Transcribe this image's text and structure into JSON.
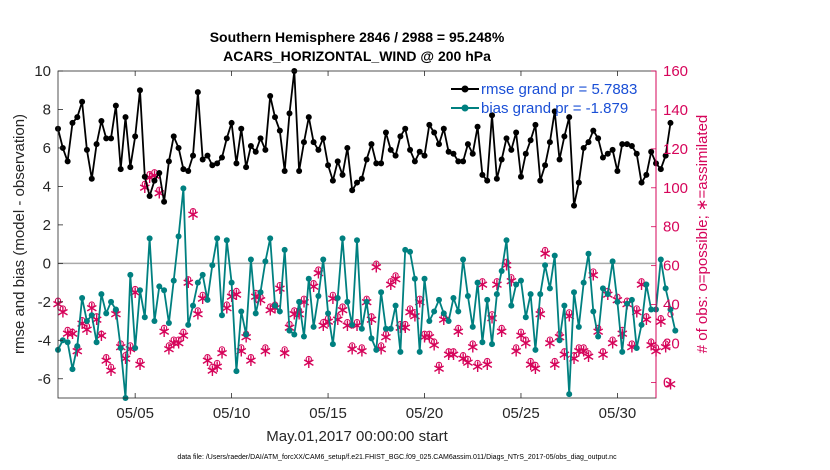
{
  "chart_data": {
    "type": "line",
    "title": "Southern Hemisphere 2846 / 2988 = 95.248%",
    "subtitle": "ACARS_HORIZONTAL_WIND @ 200 hPa",
    "xlabel": "May.01,2017 00:00:00 start",
    "ylabel": "rmse and bias (model - observation)",
    "y2label": "# of obs: o=possible; ∗=assimilated",
    "footnote": "data file: /Users/raeder/DAI/ATM_forcXX/CAM6_setup/f.e21.FHIST_BGC.f09_025.CAM6assim.011/Diags_NTrS_2017-05/obs_diag_output.nc",
    "xlim": [
      1,
      32
    ],
    "ylim": [
      -7,
      10
    ],
    "y2lim": [
      -8,
      160
    ],
    "xticks": [
      5,
      10,
      15,
      20,
      25,
      30
    ],
    "xtick_labels": [
      "05/05",
      "05/10",
      "05/15",
      "05/20",
      "05/25",
      "05/30"
    ],
    "yticks": [
      -6,
      -4,
      -2,
      0,
      2,
      4,
      6,
      8,
      10
    ],
    "y2ticks": [
      0,
      20,
      40,
      60,
      80,
      100,
      120,
      140,
      160
    ],
    "legend": {
      "position": "top-right",
      "entries": [
        "rmse grand pr = 5.7883",
        "bias grand pr = -1.879"
      ]
    },
    "colors": {
      "rmse": "#000000",
      "bias": "#008080",
      "obs": "#d6045a",
      "zero_line": "#aaaaaa"
    },
    "x_start": 1.0,
    "x_step": 0.25,
    "series": [
      {
        "name": "rmse",
        "axis": "left",
        "color": "#000000",
        "values": [
          7.0,
          6.0,
          5.3,
          7.3,
          7.6,
          8.4,
          5.9,
          4.4,
          6.2,
          7.4,
          6.5,
          6.5,
          8.2,
          4.9,
          7.6,
          5.0,
          6.6,
          9.0,
          4.5,
          3.5,
          4.3,
          4.7,
          3.2,
          5.3,
          6.6,
          6.0,
          4.9,
          4.8,
          5.6,
          8.9,
          5.4,
          5.6,
          5.1,
          5.2,
          5.5,
          6.5,
          7.3,
          5.2,
          7.0,
          5.0,
          6.1,
          5.8,
          6.5,
          5.9,
          8.7,
          7.6,
          6.9,
          4.8,
          7.8,
          10.0,
          4.8,
          6.3,
          7.6,
          6.3,
          5.9,
          6.5,
          5.1,
          4.3,
          5.3,
          4.6,
          6.0,
          3.8,
          4.2,
          4.4,
          5.4,
          6.2,
          5.2,
          5.2,
          6.8,
          5.9,
          5.6,
          6.6,
          7.0,
          5.9,
          5.3,
          5.8,
          5.6,
          7.2,
          6.8,
          6.2,
          7.0,
          5.8,
          5.7,
          5.3,
          5.3,
          6.2,
          5.7,
          7.1,
          4.6,
          4.3,
          7.7,
          4.4,
          5.4,
          6.5,
          5.9,
          6.8,
          4.5,
          5.7,
          6.4,
          7.2,
          4.3,
          5.1,
          6.3,
          7.9,
          5.4,
          6.6,
          7.6,
          3.0,
          4.2,
          6.0,
          6.3,
          6.9,
          6.5,
          5.5,
          5.7,
          5.9,
          4.8,
          6.2,
          6.2,
          6.1,
          5.7,
          4.2,
          4.6,
          5.8,
          5.2,
          4.9,
          5.6,
          7.3
        ]
      },
      {
        "name": "bias",
        "axis": "left",
        "color": "#008080",
        "values": [
          -4.5,
          -4.0,
          -4.1,
          -5.5,
          -4.3,
          -1.8,
          -3.0,
          -2.7,
          -4.1,
          -1.6,
          -2.6,
          -2.0,
          -2.4,
          -4.4,
          -7.0,
          -0.6,
          -4.4,
          -1.4,
          -2.8,
          1.3,
          -3.0,
          -1.2,
          -1.4,
          -3.1,
          -0.9,
          1.4,
          3.9,
          -3.2,
          -2.2,
          -1.0,
          -0.6,
          -1.9,
          -0.1,
          1.3,
          -2.7,
          1.2,
          -1.0,
          -5.6,
          -2.5,
          -3.7,
          0.2,
          -2.6,
          -1.5,
          0.1,
          1.3,
          -2.2,
          -2.5,
          0.7,
          -3.5,
          -3.7,
          -2.0,
          -3.8,
          -0.8,
          -3.3,
          -1.7,
          0.2,
          -2.6,
          -4.2,
          -1.8,
          1.3,
          -2.0,
          -3.2,
          1.2,
          -3.4,
          -2.0,
          -3.9,
          -4.5,
          -1.5,
          -3.4,
          -3.4,
          -2.2,
          -4.6,
          0.7,
          0.6,
          -0.8,
          -4.6,
          -0.8,
          -3.0,
          -2.5,
          -1.9,
          -2.6,
          -3.0,
          -1.8,
          -2.5,
          0.2,
          -1.7,
          -3.3,
          -1.0,
          -4.1,
          -1.9,
          -4.2,
          -1.6,
          -0.4,
          1.2,
          -2.2,
          -1.1,
          -0.9,
          -2.8,
          -1.6,
          -4.5,
          -1.6,
          -0.1,
          -1.3,
          0.4,
          -4.0,
          -2.2,
          -6.8,
          -1.5,
          -3.3,
          -1.0,
          0.5,
          -2.5,
          -3.8,
          -1.3,
          -1.6,
          0.1,
          -2.0,
          -4.6,
          -2.1,
          -1.9,
          -4.4,
          -3.2,
          -1.1,
          -2.4,
          -2.4,
          0.2,
          -1.3,
          -2.4,
          -3.5
        ]
      },
      {
        "name": "obs_possible",
        "axis": "right",
        "color": "#d6045a",
        "marker": "o",
        "values": [
          42,
          38,
          27,
          26,
          18,
          32,
          29,
          40,
          34,
          25,
          13,
          8,
          37,
          20,
          14,
          19,
          48,
          11,
          102,
          107,
          108,
          99,
          28,
          19,
          22,
          22,
          26,
          53,
          88,
          37,
          45,
          13,
          8,
          10,
          17,
          40,
          46,
          47,
          18,
          25,
          13,
          46,
          44,
          18,
          39,
          40,
          50,
          17,
          30,
          37,
          37,
          43,
          12,
          51,
          58,
          31,
          33,
          45,
          34,
          39,
          31,
          19,
          31,
          18,
          43,
          34,
          61,
          19,
          25,
          52,
          55,
          30,
          30,
          38,
          36,
          43,
          25,
          25,
          21,
          9,
          34,
          16,
          16,
          28,
          14,
          12,
          20,
          10,
          52,
          11,
          35,
          52,
          28,
          62,
          54,
          18,
          26,
          22,
          11,
          9,
          37,
          68,
          22,
          11,
          25,
          16,
          36,
          14,
          18,
          18,
          15,
          57,
          28,
          16,
          47,
          22,
          44,
          27,
          42,
          20,
          38,
          52,
          34,
          21,
          18,
          33,
          20,
          35
        ]
      },
      {
        "name": "obs_assimilated",
        "axis": "right",
        "color": "#d6045a",
        "marker": "*",
        "values": [
          41,
          37,
          26,
          26,
          17,
          31,
          28,
          39,
          33,
          25,
          12,
          7,
          36,
          19,
          13,
          18,
          47,
          10,
          101,
          106,
          107,
          98,
          27,
          18,
          21,
          21,
          25,
          52,
          87,
          36,
          44,
          12,
          7,
          9,
          16,
          39,
          45,
          46,
          17,
          24,
          12,
          45,
          43,
          17,
          38,
          39,
          49,
          16,
          29,
          36,
          36,
          42,
          11,
          50,
          57,
          30,
          32,
          44,
          33,
          38,
          30,
          18,
          30,
          17,
          42,
          33,
          60,
          18,
          24,
          51,
          54,
          29,
          29,
          37,
          35,
          42,
          24,
          24,
          20,
          8,
          33,
          15,
          15,
          27,
          13,
          11,
          19,
          9,
          51,
          10,
          34,
          51,
          27,
          61,
          53,
          17,
          25,
          21,
          10,
          8,
          36,
          67,
          21,
          10,
          24,
          15,
          35,
          13,
          17,
          17,
          14,
          56,
          27,
          15,
          46,
          21,
          43,
          26,
          41,
          19,
          37,
          51,
          33,
          20,
          17,
          32,
          19,
          0
        ]
      }
    ]
  }
}
